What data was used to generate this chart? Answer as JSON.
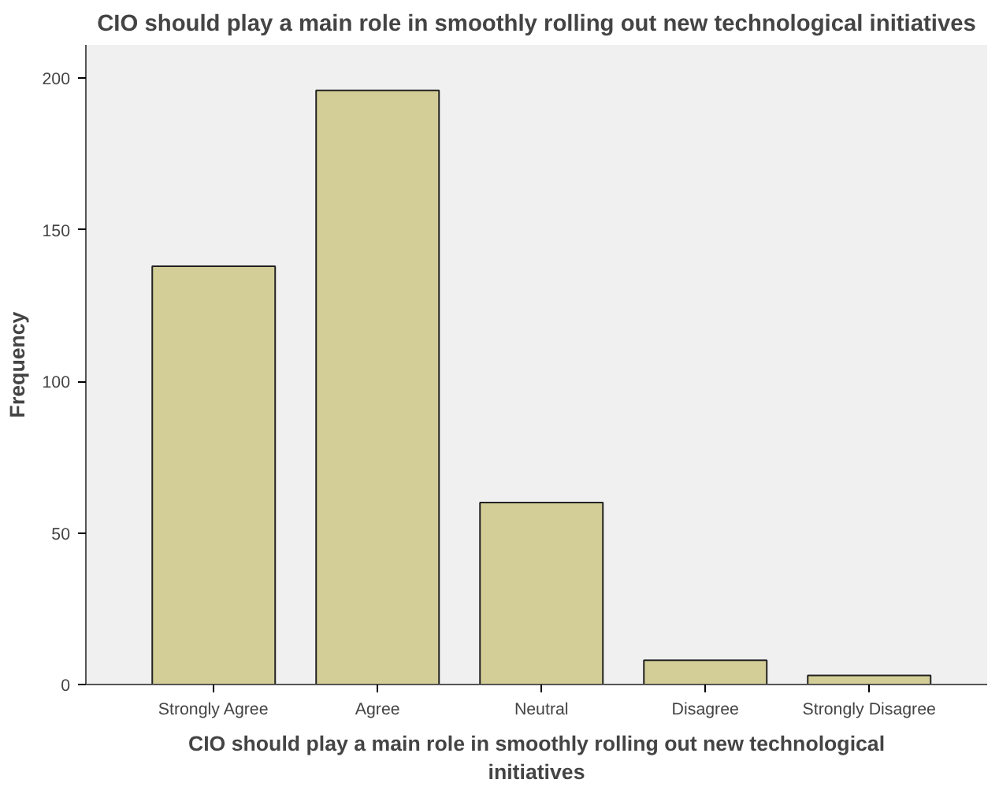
{
  "chart_data": {
    "type": "bar",
    "title": "CIO should play a main role in smoothly rolling out new technological initiatives",
    "xlabel": "CIO should play a main role in smoothly rolling out new technological initiatives",
    "ylabel": "Frequency",
    "categories": [
      "Strongly Agree",
      "Agree",
      "Neutral",
      "Disagree",
      "Strongly Disagree"
    ],
    "values": [
      138,
      196,
      60,
      8,
      3
    ],
    "color": "#d3ce97",
    "ylim": [
      0,
      211
    ],
    "yticks": [
      0,
      50,
      100,
      150,
      200
    ],
    "grid": false
  }
}
